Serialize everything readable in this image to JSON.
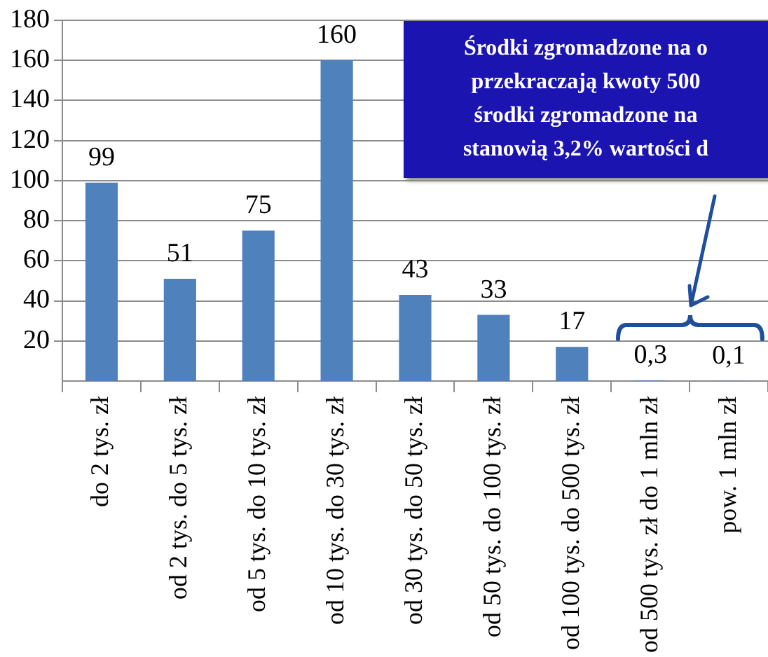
{
  "chart_data": {
    "type": "bar",
    "categories": [
      "do 2 tys. zł",
      "od 2 tys. do 5 tys. zł",
      "od 5 tys. do 10 tys. zł",
      "od 10 tys. do 30 tys. zł",
      "od 30 tys. do 50 tys. zł",
      "od 50 tys. do 100 tys. zł",
      "od 100 tys. do 500 tys. zł",
      "od 500 tys. zł do 1 mln zł",
      "pow. 1 mln zł"
    ],
    "values": [
      99,
      51,
      75,
      160,
      43,
      33,
      17,
      0.3,
      0.1
    ],
    "value_labels": [
      "99",
      "51",
      "75",
      "160",
      "43",
      "33",
      "17",
      "0,3",
      "0,1"
    ],
    "color": "#4f81bd",
    "ylim": [
      0,
      180
    ],
    "yticks": [
      20,
      40,
      60,
      80,
      100,
      120,
      140,
      160,
      180
    ],
    "grid": "y",
    "legend": false,
    "annotations": [
      "Środki zgromadzone na o\nprzekraczają kwoty 500\nśrodki zgromadzone na\nstanowią 3,2% wartości d"
    ]
  }
}
